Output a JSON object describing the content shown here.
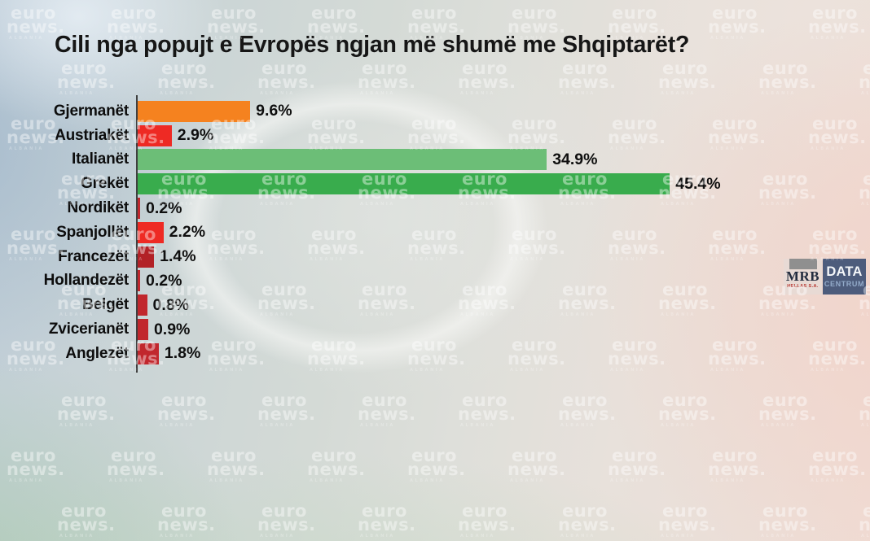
{
  "title": "Cili nga popujt e Evropës ngjan më shumë me Shqiptarët?",
  "watermark": {
    "line1": "euro",
    "line2": "news.",
    "line3": "ALBANIA"
  },
  "chart_data": {
    "type": "bar",
    "orientation": "horizontal",
    "title": "Cili nga popujt e Evropës ngjan më shumë me Shqiptarët?",
    "categories": [
      "Gjermanët",
      "Austriakët",
      "Italianët",
      "Grekët",
      "Nordikët",
      "Spanjollët",
      "Francezët",
      "Hollandezët",
      "Belgët",
      "Zvicerianët",
      "Anglezët"
    ],
    "values": [
      9.6,
      2.9,
      34.9,
      45.4,
      0.2,
      2.2,
      1.4,
      0.2,
      0.8,
      0.9,
      1.8
    ],
    "value_labels": [
      "9.6%",
      "2.9%",
      "34.9%",
      "45.4%",
      "0.2%",
      "2.2%",
      "1.4%",
      "0.2%",
      "0.8%",
      "0.9%",
      "1.8%"
    ],
    "bar_colors": [
      "#F5821F",
      "#EE2A24",
      "#6CBE77",
      "#39AC4D",
      "#C1272D",
      "#EE2A24",
      "#B22126",
      "#C1272D",
      "#C1272D",
      "#C1272D",
      "#C1272D"
    ],
    "xlabel": "",
    "ylabel": "",
    "xlim": [
      0,
      50
    ],
    "grid": false,
    "legend": false,
    "axis_line_color": "#3f3f3f",
    "value_suffix": "%"
  },
  "logos": {
    "mrb": {
      "name": "MRB",
      "subtext": "HELLAS S.A.",
      "accent_color": "#b5342e"
    },
    "datacentrum": {
      "line1": "DATA",
      "line2": "CENTRUM",
      "background_color": "#4d5c7c"
    }
  }
}
